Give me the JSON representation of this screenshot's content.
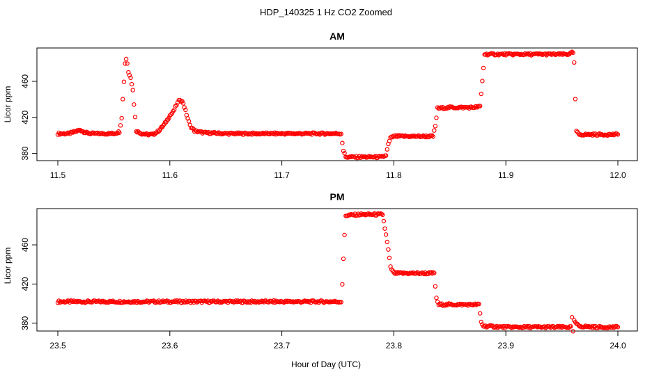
{
  "figure": {
    "title": "HDP_140325  1 Hz CO2 Zoomed",
    "xlabel": "Hour of Day (UTC)",
    "point_color": "#ff0000"
  },
  "chart_data": [
    {
      "type": "scatter",
      "title": "AM",
      "xlabel": "",
      "ylabel": "Licor ppm",
      "xlim": [
        11.5,
        12.0
      ],
      "ylim": [
        372,
        497
      ],
      "xticks": [
        11.5,
        11.6,
        11.7,
        11.8,
        11.9,
        12.0
      ],
      "xtick_labels": [
        "11.5",
        "11.6",
        "11.7",
        "11.8",
        "11.9",
        "12.0"
      ],
      "yticks": [
        380,
        420,
        460
      ],
      "ytick_labels": [
        "380",
        "420",
        "460"
      ],
      "grid": false,
      "legend": "none",
      "series": [
        {
          "color": "#ff0000",
          "marker": "open-circle",
          "points": [
            [
              11.5,
              402
            ],
            [
              11.51,
              402
            ],
            [
              11.515,
              404
            ],
            [
              11.52,
              406
            ],
            [
              11.525,
              403
            ],
            [
              11.53,
              402
            ],
            [
              11.55,
              402
            ],
            [
              11.555,
              404
            ],
            [
              11.557,
              420
            ],
            [
              11.559,
              460
            ],
            [
              11.56,
              480
            ],
            [
              11.561,
              485
            ],
            [
              11.562,
              480
            ],
            [
              11.563,
              470
            ],
            [
              11.565,
              465
            ],
            [
              11.567,
              450
            ],
            [
              11.569,
              420
            ],
            [
              11.57,
              405
            ],
            [
              11.575,
              402
            ],
            [
              11.58,
              401
            ],
            [
              11.585,
              401
            ],
            [
              11.59,
              405
            ],
            [
              11.595,
              412
            ],
            [
              11.6,
              422
            ],
            [
              11.603,
              426
            ],
            [
              11.606,
              434
            ],
            [
              11.609,
              440
            ],
            [
              11.612,
              436
            ],
            [
              11.615,
              423
            ],
            [
              11.618,
              411
            ],
            [
              11.622,
              405
            ],
            [
              11.63,
              403
            ],
            [
              11.65,
              402
            ],
            [
              11.7,
              402
            ],
            [
              11.75,
              402
            ],
            [
              11.753,
              402
            ],
            [
              11.754,
              392
            ],
            [
              11.755,
              383
            ],
            [
              11.757,
              376
            ],
            [
              11.77,
              376
            ],
            [
              11.79,
              376
            ],
            [
              11.793,
              378
            ],
            [
              11.795,
              390
            ],
            [
              11.797,
              397
            ],
            [
              11.8,
              399
            ],
            [
              11.82,
              399
            ],
            [
              11.835,
              399
            ],
            [
              11.837,
              410
            ],
            [
              11.839,
              430
            ],
            [
              11.85,
              431
            ],
            [
              11.87,
              431
            ],
            [
              11.877,
              432
            ],
            [
              11.879,
              460
            ],
            [
              11.881,
              490
            ],
            [
              11.9,
              490
            ],
            [
              11.93,
              490
            ],
            [
              11.955,
              490
            ],
            [
              11.96,
              492
            ],
            [
              11.961,
              480
            ],
            [
              11.962,
              440
            ],
            [
              11.963,
              405
            ],
            [
              11.965,
              401
            ],
            [
              11.98,
              401
            ],
            [
              12.0,
              401
            ]
          ]
        }
      ]
    },
    {
      "type": "scatter",
      "title": "PM",
      "xlabel": "",
      "ylabel": "Licor ppm",
      "xlim": [
        23.5,
        24.0
      ],
      "ylim": [
        372,
        497
      ],
      "xticks": [
        23.5,
        23.6,
        23.7,
        23.8,
        23.9,
        24.0
      ],
      "xtick_labels": [
        "23.5",
        "23.6",
        "23.7",
        "23.8",
        "23.9",
        "24.0"
      ],
      "yticks": [
        380,
        420,
        460
      ],
      "ytick_labels": [
        "380",
        "420",
        "460"
      ],
      "grid": false,
      "legend": "none",
      "series": [
        {
          "color": "#ff0000",
          "marker": "open-circle",
          "points": [
            [
              23.5,
              402
            ],
            [
              23.55,
              402
            ],
            [
              23.6,
              402
            ],
            [
              23.65,
              402
            ],
            [
              23.7,
              402
            ],
            [
              23.75,
              402
            ],
            [
              23.753,
              402
            ],
            [
              23.754,
              420
            ],
            [
              23.755,
              445
            ],
            [
              23.756,
              470
            ],
            [
              23.757,
              490
            ],
            [
              23.77,
              491
            ],
            [
              23.79,
              491
            ],
            [
              23.793,
              470
            ],
            [
              23.795,
              455
            ],
            [
              23.797,
              437
            ],
            [
              23.8,
              431
            ],
            [
              23.82,
              431
            ],
            [
              23.836,
              431
            ],
            [
              23.837,
              418
            ],
            [
              23.838,
              405
            ],
            [
              23.84,
              399
            ],
            [
              23.86,
              399
            ],
            [
              23.876,
              399
            ],
            [
              23.877,
              390
            ],
            [
              23.878,
              381
            ],
            [
              23.88,
              377
            ],
            [
              23.9,
              376
            ],
            [
              23.93,
              376
            ],
            [
              23.958,
              376
            ],
            [
              23.959,
              385
            ],
            [
              23.96,
              372
            ],
            [
              23.961,
              382
            ],
            [
              23.965,
              377
            ],
            [
              23.98,
              376
            ],
            [
              24.0,
              376
            ]
          ]
        }
      ]
    }
  ]
}
